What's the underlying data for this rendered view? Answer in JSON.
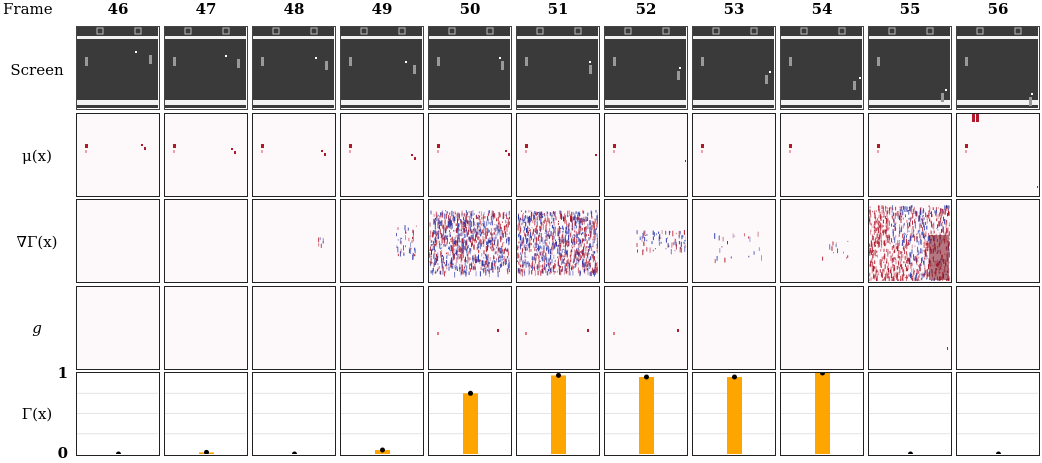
{
  "header": {
    "frame_label": "Frame"
  },
  "frames": [
    "46",
    "47",
    "48",
    "49",
    "50",
    "51",
    "52",
    "53",
    "54",
    "55",
    "56"
  ],
  "rows": [
    {
      "key": "screen",
      "label": "Screen"
    },
    {
      "key": "mu",
      "label": "μ(x)"
    },
    {
      "key": "grad",
      "label": "∇Γ(x)"
    },
    {
      "key": "g",
      "label": "g"
    },
    {
      "key": "gamma",
      "label": "Γ(x)"
    }
  ],
  "yticks": [
    "1",
    "0"
  ],
  "colors": {
    "bar": "#ffa500",
    "positive": "#b2182b",
    "negative": "#2233aa",
    "screen_bg": "#3a3a3a",
    "dot": "#000000"
  },
  "chart_data": {
    "type": "bar",
    "title": "",
    "categories": [
      "46",
      "47",
      "48",
      "49",
      "50",
      "51",
      "52",
      "53",
      "54",
      "55",
      "56"
    ],
    "values": [
      0.0,
      0.02,
      0.0,
      0.05,
      0.75,
      0.97,
      0.95,
      0.95,
      1.0,
      0.0,
      0.0
    ],
    "ylim": [
      0,
      1
    ]
  }
}
